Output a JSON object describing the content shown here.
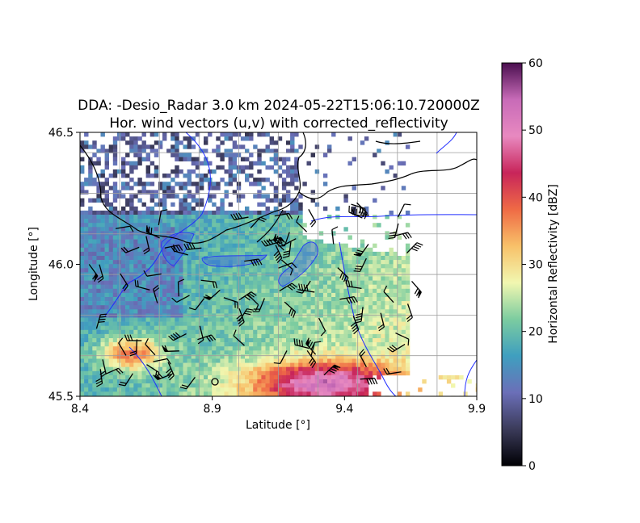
{
  "chart_data": {
    "type": "heatmap",
    "title_line1": "DDA: -Desio_Radar 3.0 km 2024-05-22T15:06:10.720000Z",
    "title_line2": "Hor. wind vectors (u,v) with corrected_reflectivity",
    "xlabel": "Latitude [°]",
    "ylabel": "Longitude [°]",
    "xlim": [
      8.4,
      9.9
    ],
    "ylim": [
      45.5,
      46.5
    ],
    "xticks": [
      "8.4",
      "8.9",
      "9.4",
      "9.9"
    ],
    "yticks": [
      "45.5",
      "46.0",
      "46.5"
    ],
    "grid": true,
    "colorbar": {
      "label": "Horizontal Reflectivity [dBZ]",
      "range": [
        0,
        60
      ],
      "ticks": [
        "0",
        "10",
        "20",
        "30",
        "40",
        "50",
        "60"
      ],
      "colormap": "Spectral_r-like",
      "stops": [
        "#000004",
        "#3b3b5a",
        "#6b6fb8",
        "#3f9fbf",
        "#7ccca0",
        "#f1f7b0",
        "#f8c169",
        "#ef6a45",
        "#c8255a",
        "#e889c0",
        "#c86bb8",
        "#4a0f4f"
      ]
    },
    "overlays": {
      "wind_barbs": "black",
      "rivers_lakes": "blue",
      "borders": "black"
    }
  }
}
